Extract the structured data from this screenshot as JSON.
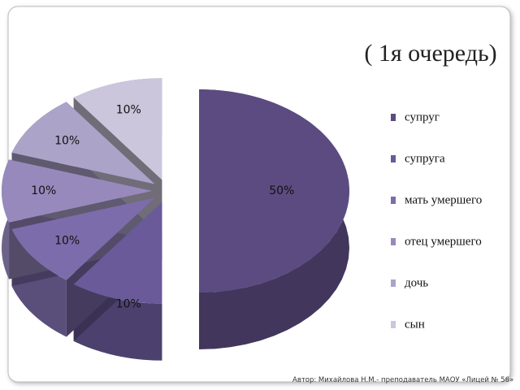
{
  "chart_data": {
    "type": "pie",
    "title": "( 1я очередь)",
    "categories": [
      "супруг",
      "супруга",
      "мать умершего",
      "отец умершего",
      "дочь",
      "сын"
    ],
    "values": [
      50,
      10,
      10,
      10,
      10,
      10
    ],
    "value_labels": [
      "50%",
      "10%",
      "10%",
      "10%",
      "10%",
      "10%"
    ],
    "colors": [
      "#5c4b80",
      "#6a5a99",
      "#7d6cab",
      "#9889bd",
      "#aca3c9",
      "#cbc6dc"
    ],
    "legend": "right"
  },
  "footer": "Автор: Михайлова Н.М.- преподаватель МАОУ «Лицей № 56»"
}
